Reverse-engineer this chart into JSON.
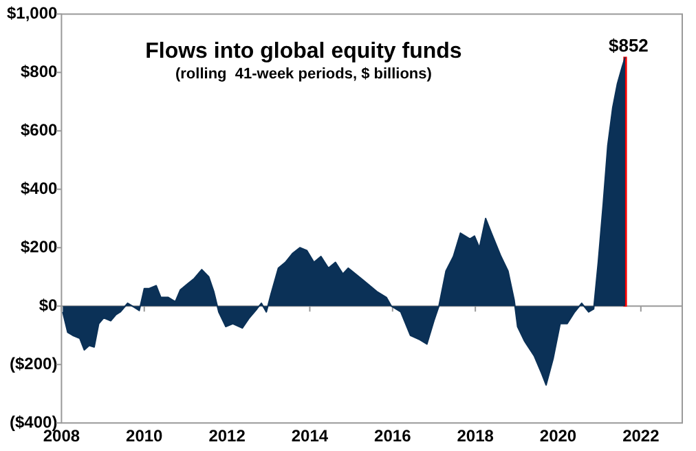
{
  "chart_data": {
    "type": "area",
    "title": "Flows into global equity funds",
    "subtitle": "(rolling  41-week periods, $ billions)",
    "xlim": [
      2008,
      2023
    ],
    "xticks": [
      2008,
      2010,
      2012,
      2014,
      2016,
      2018,
      2020,
      2022
    ],
    "ylim": [
      -400,
      1000
    ],
    "yticks": [
      {
        "value": -400,
        "label": "($400)"
      },
      {
        "value": -200,
        "label": "($200)"
      },
      {
        "value": 0,
        "label": "$0"
      },
      {
        "value": 200,
        "label": "$200"
      },
      {
        "value": 400,
        "label": "$400"
      },
      {
        "value": 600,
        "label": "$600"
      },
      {
        "value": 800,
        "label": "$800"
      },
      {
        "value": 1000,
        "label": "$1,000"
      }
    ],
    "grid": false,
    "legend": false,
    "ref_lines": [
      {
        "axis": "y",
        "value": 0,
        "color": "#999999"
      }
    ],
    "annotations": [
      {
        "text": "$852",
        "x": 2021.62,
        "y": 852
      }
    ],
    "series": [
      {
        "color": "#0b3157",
        "x": [
          2008.03,
          2008.15,
          2008.27,
          2008.44,
          2008.55,
          2008.67,
          2008.79,
          2008.9,
          2009.02,
          2009.19,
          2009.31,
          2009.42,
          2009.6,
          2009.77,
          2009.88,
          2010.0,
          2010.12,
          2010.29,
          2010.4,
          2010.58,
          2010.75,
          2010.87,
          2011.04,
          2011.21,
          2011.39,
          2011.56,
          2011.68,
          2011.8,
          2011.97,
          2012.14,
          2012.37,
          2012.54,
          2012.72,
          2012.83,
          2012.95,
          2013.06,
          2013.24,
          2013.41,
          2013.58,
          2013.76,
          2013.93,
          2014.1,
          2014.27,
          2014.45,
          2014.62,
          2014.8,
          2014.93,
          2015.28,
          2015.62,
          2015.85,
          2015.97,
          2016.2,
          2016.43,
          2016.66,
          2016.83,
          2017.0,
          2017.12,
          2017.29,
          2017.47,
          2017.64,
          2017.87,
          2017.98,
          2018.1,
          2018.25,
          2018.39,
          2018.62,
          2018.79,
          2018.94,
          2019.02,
          2019.19,
          2019.42,
          2019.6,
          2019.71,
          2019.88,
          2020.05,
          2020.22,
          2020.4,
          2020.57,
          2020.74,
          2020.86,
          2020.97,
          2021.09,
          2021.2,
          2021.32,
          2021.43,
          2021.55,
          2021.62
        ],
        "values": [
          -20,
          -90,
          -100,
          -110,
          -150,
          -135,
          -140,
          -60,
          -40,
          -50,
          -30,
          -20,
          10,
          -5,
          -15,
          60,
          60,
          70,
          30,
          30,
          15,
          55,
          75,
          95,
          125,
          100,
          50,
          -20,
          -70,
          -60,
          -75,
          -40,
          -10,
          10,
          -20,
          40,
          130,
          150,
          180,
          200,
          190,
          150,
          170,
          130,
          150,
          110,
          130,
          90,
          50,
          30,
          0,
          -20,
          -100,
          -115,
          -130,
          -50,
          0,
          120,
          170,
          250,
          230,
          240,
          200,
          300,
          250,
          170,
          120,
          20,
          -70,
          -120,
          -170,
          -230,
          -270,
          -180,
          -60,
          -60,
          -20,
          10,
          -20,
          -10,
          150,
          350,
          550,
          680,
          760,
          820,
          852
        ]
      },
      {
        "type": "bar",
        "color": "#ff0000",
        "x": [
          2021.62
        ],
        "values": [
          852
        ]
      }
    ]
  }
}
